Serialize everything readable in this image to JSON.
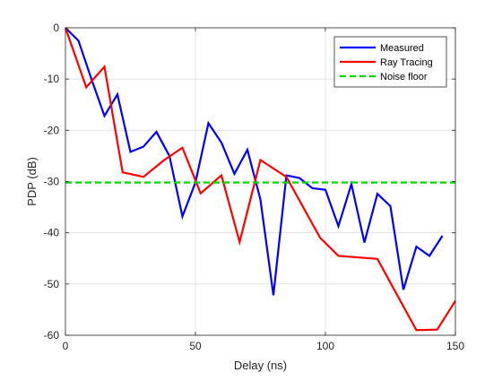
{
  "chart_data": {
    "type": "line",
    "title": "",
    "xlabel": "Delay (ns)",
    "ylabel": "PDP (dB)",
    "xlim": [
      0,
      150
    ],
    "ylim": [
      -60,
      0
    ],
    "xticks": [
      0,
      50,
      100,
      150
    ],
    "yticks": [
      0,
      -10,
      -20,
      -30,
      -40,
      -50,
      -60
    ],
    "xtick_labels": [
      "0",
      "50",
      "100",
      "150"
    ],
    "ytick_labels": [
      "0",
      "-10",
      "-20",
      "-30",
      "-40",
      "-50",
      "-60"
    ],
    "grid": true,
    "legend_position": "top-right",
    "series": [
      {
        "name": "Measured",
        "color": "#0000ff",
        "style": "solid",
        "x": [
          0,
          5,
          10,
          15,
          20,
          25,
          30,
          35,
          40,
          45,
          50,
          55,
          60,
          65,
          70,
          75,
          80,
          85,
          90,
          95,
          100,
          105,
          110,
          115,
          120,
          125,
          130,
          135,
          140,
          145
        ],
        "y": [
          0,
          -2.5,
          -10,
          -17.2,
          -13,
          -24.2,
          -23.2,
          -20.3,
          -25,
          -36.8,
          -30.2,
          -18.6,
          -22.4,
          -28.5,
          -23.8,
          -33.5,
          -52.2,
          -28.8,
          -29.3,
          -31.3,
          -31.6,
          -38.7,
          -30.5,
          -41.9,
          -32.4,
          -34.8,
          -51.1,
          -42.7,
          -44.5,
          -40.6
        ]
      },
      {
        "name": "Ray Tracing",
        "color": "#ff0000",
        "style": "solid",
        "x": [
          0,
          8,
          15,
          22,
          30,
          38,
          45,
          52,
          60,
          67,
          75,
          85,
          98,
          105,
          120,
          135,
          143,
          150
        ],
        "y": [
          0,
          -11.6,
          -7.6,
          -28.2,
          -29.1,
          -25.8,
          -23.4,
          -32.3,
          -28.8,
          -41.8,
          -25.8,
          -29.1,
          -41,
          -44.5,
          -45.1,
          -59,
          -58.9,
          -53.3
        ]
      },
      {
        "name": "Noise floor",
        "color": "#00dd00",
        "style": "dashed",
        "x": [
          0,
          150
        ],
        "y": [
          -30.2,
          -30.2
        ]
      }
    ]
  }
}
